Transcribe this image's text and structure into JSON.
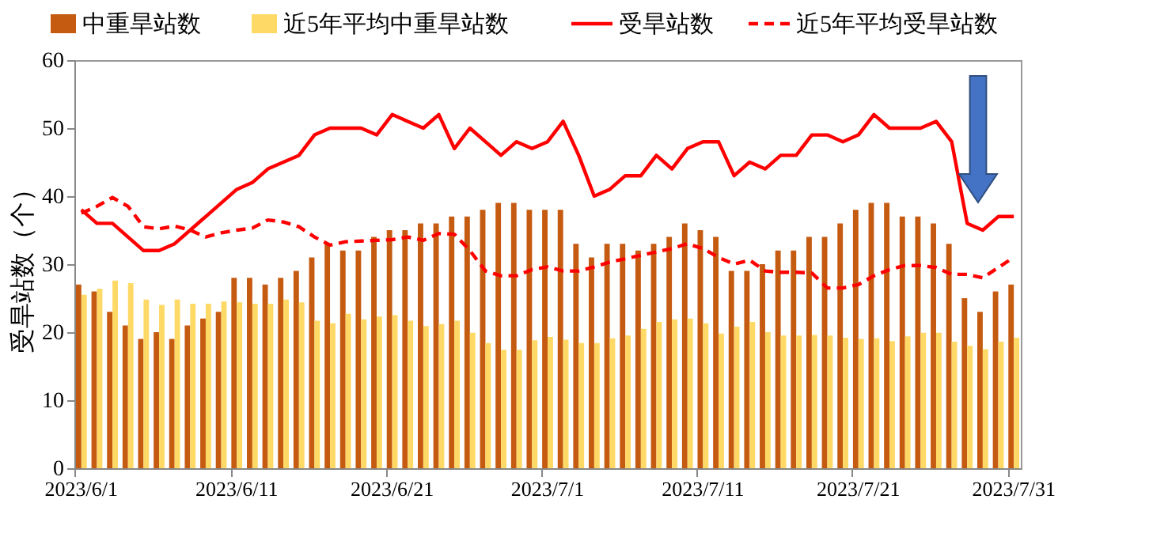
{
  "chart_data": {
    "type": "bar",
    "ylabel": "受旱站数（个）",
    "legend": "top",
    "grid": false,
    "categories": [
      "2023/6/1",
      null,
      null,
      null,
      null,
      null,
      null,
      null,
      null,
      null,
      "2023/6/11",
      null,
      null,
      null,
      null,
      null,
      null,
      null,
      null,
      null,
      "2023/6/21",
      null,
      null,
      null,
      null,
      null,
      null,
      null,
      null,
      null,
      "2023/7/1",
      null,
      null,
      null,
      null,
      null,
      null,
      null,
      null,
      null,
      "2023/7/11",
      null,
      null,
      null,
      null,
      null,
      null,
      null,
      null,
      null,
      "2023/7/21",
      null,
      null,
      null,
      null,
      null,
      null,
      null,
      null,
      null,
      "2023/7/31"
    ],
    "ylim": [
      0,
      60
    ],
    "yticks": [
      0,
      10,
      20,
      30,
      40,
      50,
      60
    ],
    "series": [
      {
        "name": "中重旱站数",
        "color": "#c55a11",
        "values": [
          27,
          26,
          23,
          21,
          19,
          20,
          19,
          21,
          22,
          23,
          28,
          28,
          27,
          28,
          29,
          31,
          33,
          32,
          32,
          34,
          35,
          35,
          36,
          36,
          37,
          37,
          38,
          39,
          39,
          38,
          38,
          38,
          33,
          31,
          33,
          33,
          32,
          33,
          34,
          36,
          35,
          34,
          29,
          29,
          30,
          32,
          32,
          34,
          34,
          36,
          38,
          39,
          39,
          37,
          37,
          36,
          33,
          25,
          23,
          26,
          27
        ]
      },
      {
        "name": "近5年平均中重旱站数",
        "color": "#ffd966",
        "values": [
          25.5,
          26.4,
          27.6,
          27.2,
          24.8,
          24,
          24.8,
          24.2,
          24.2,
          24.5,
          24.4,
          24.2,
          24.2,
          24.8,
          24.4,
          21.7,
          21.3,
          22.7,
          21.9,
          22.3,
          22.5,
          21.7,
          20.9,
          21.2,
          21.7,
          19.9,
          18.4,
          17.4,
          17.4,
          18.8,
          19.3,
          18.9,
          18.4,
          18.4,
          19.1,
          19.5,
          20.5,
          21.5,
          21.9,
          22,
          21.3,
          19.8,
          20.8,
          21.5,
          20,
          19.5,
          19.5,
          19.6,
          19.5,
          19.2,
          19,
          19.1,
          18.7,
          19.4,
          19.9,
          19.9,
          18.6,
          18,
          17.5,
          18.6,
          19.2
        ]
      },
      {
        "name": "受旱站数",
        "color": "#ff0000",
        "type": "line",
        "line_style": "solid",
        "values": [
          38,
          36,
          36,
          34,
          32,
          32,
          33,
          35,
          37,
          39,
          41,
          42,
          44,
          45,
          46,
          49,
          50,
          50,
          50,
          49,
          52,
          51,
          50,
          52,
          47,
          50,
          48,
          46,
          48,
          47,
          48,
          51,
          46,
          40,
          41,
          43,
          43,
          46,
          44,
          47,
          48,
          48,
          43,
          45,
          44,
          46,
          46,
          49,
          49,
          48,
          49,
          52,
          50,
          50,
          50,
          51,
          48,
          36,
          35,
          37,
          37
        ]
      },
      {
        "name": "近5年平均受旱站数",
        "color": "#ff0000",
        "type": "line",
        "line_style": "dashed",
        "values": [
          37.5,
          38.5,
          39.8,
          38.5,
          35.5,
          35.2,
          35.6,
          35,
          34,
          34.6,
          35,
          35.3,
          36.5,
          36.2,
          35.5,
          34,
          32.8,
          33.3,
          33.4,
          33.5,
          33.6,
          34,
          33.5,
          34.5,
          34.4,
          32,
          29,
          28.3,
          28.3,
          29.2,
          29.6,
          29,
          29,
          29.6,
          30.3,
          30.8,
          31.3,
          31.8,
          32.3,
          33,
          32.3,
          31,
          30,
          30.6,
          29,
          28.8,
          28.8,
          28.7,
          26.5,
          26.5,
          27,
          28.3,
          29.2,
          29.8,
          29.8,
          29.5,
          28.5,
          28.5,
          28,
          29.5,
          31
        ]
      }
    ]
  }
}
